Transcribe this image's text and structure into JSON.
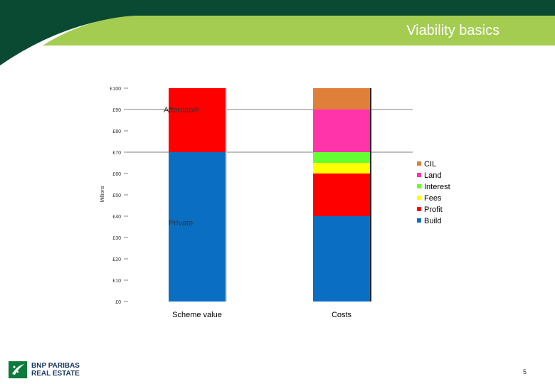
{
  "slide": {
    "title": "Viability basics",
    "page_number": "5",
    "logo": {
      "line1": "BNP PARIBAS",
      "line2": "REAL ESTATE"
    },
    "colors": {
      "header_dark": "#0a4a32",
      "header_green": "#a3cc50",
      "logo_green": "#0b7a3b",
      "logo_navy": "#17365d"
    }
  },
  "chart_data": {
    "type": "bar",
    "stacked": true,
    "ylabel": "Millions",
    "ylim": [
      0,
      100
    ],
    "yticks": [
      {
        "value": 0,
        "label": "£0"
      },
      {
        "value": 10,
        "label": "£10"
      },
      {
        "value": 20,
        "label": "£20"
      },
      {
        "value": 30,
        "label": "£30"
      },
      {
        "value": 40,
        "label": "£40"
      },
      {
        "value": 50,
        "label": "£50"
      },
      {
        "value": 60,
        "label": "£60"
      },
      {
        "value": 70,
        "label": "£70"
      },
      {
        "value": 80,
        "label": "£80"
      },
      {
        "value": 90,
        "label": "£90"
      },
      {
        "value": 100,
        "label": "£100"
      }
    ],
    "gridlines": [
      90,
      70
    ],
    "categories": [
      "Scheme value",
      "Costs"
    ],
    "series": [
      {
        "name": "Private",
        "color": "#0a6fc2",
        "values": [
          70,
          null
        ],
        "label": "Private",
        "show_in_legend": false
      },
      {
        "name": "Affordable",
        "color": "#ff0000",
        "values": [
          30,
          null
        ],
        "label": "Affordable",
        "show_in_legend": false
      },
      {
        "name": "Build",
        "color": "#0a6fc2",
        "values": [
          null,
          40
        ],
        "show_in_legend": true
      },
      {
        "name": "Profit",
        "color": "#ff0000",
        "values": [
          null,
          20
        ],
        "show_in_legend": true
      },
      {
        "name": "Fees",
        "color": "#ffff00",
        "values": [
          null,
          5
        ],
        "show_in_legend": true
      },
      {
        "name": "Interest",
        "color": "#66ff33",
        "values": [
          null,
          5
        ],
        "show_in_legend": true
      },
      {
        "name": "Land",
        "color": "#ff33aa",
        "values": [
          null,
          20
        ],
        "show_in_legend": true
      },
      {
        "name": "CIL",
        "color": "#e07f3a",
        "values": [
          null,
          10
        ],
        "show_in_legend": true
      }
    ],
    "legend": {
      "position": "right",
      "order": [
        "CIL",
        "Land",
        "Interest",
        "Fees",
        "Profit",
        "Build"
      ]
    },
    "grid": false
  }
}
